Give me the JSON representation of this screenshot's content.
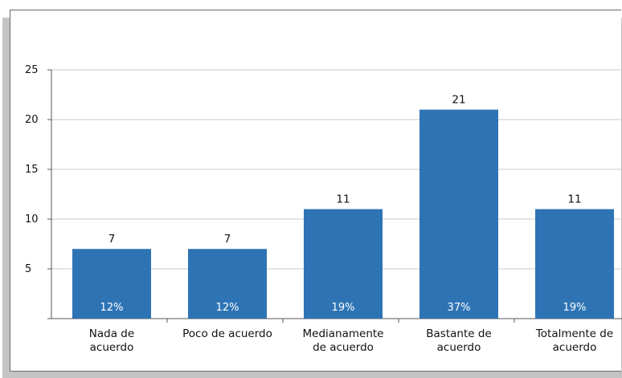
{
  "chart_data": {
    "type": "bar",
    "categories": [
      [
        "Nada de",
        "acuerdo"
      ],
      [
        "Poco de acuerdo"
      ],
      [
        "Medianamente",
        "de acuerdo"
      ],
      [
        "Bastante de",
        "acuerdo"
      ],
      [
        "Totalmente de",
        "acuerdo"
      ]
    ],
    "values": [
      7,
      7,
      11,
      21,
      11
    ],
    "percent_labels": [
      "12%",
      "12%",
      "19%",
      "37%",
      "19%"
    ],
    "ylim": [
      0,
      25
    ],
    "yticks": [
      5,
      10,
      15,
      20,
      25
    ],
    "grid": true,
    "legend": "none",
    "colors": {
      "bar": "#2e74b5",
      "grid": "#c8c8c8",
      "axis": "#555555"
    }
  }
}
